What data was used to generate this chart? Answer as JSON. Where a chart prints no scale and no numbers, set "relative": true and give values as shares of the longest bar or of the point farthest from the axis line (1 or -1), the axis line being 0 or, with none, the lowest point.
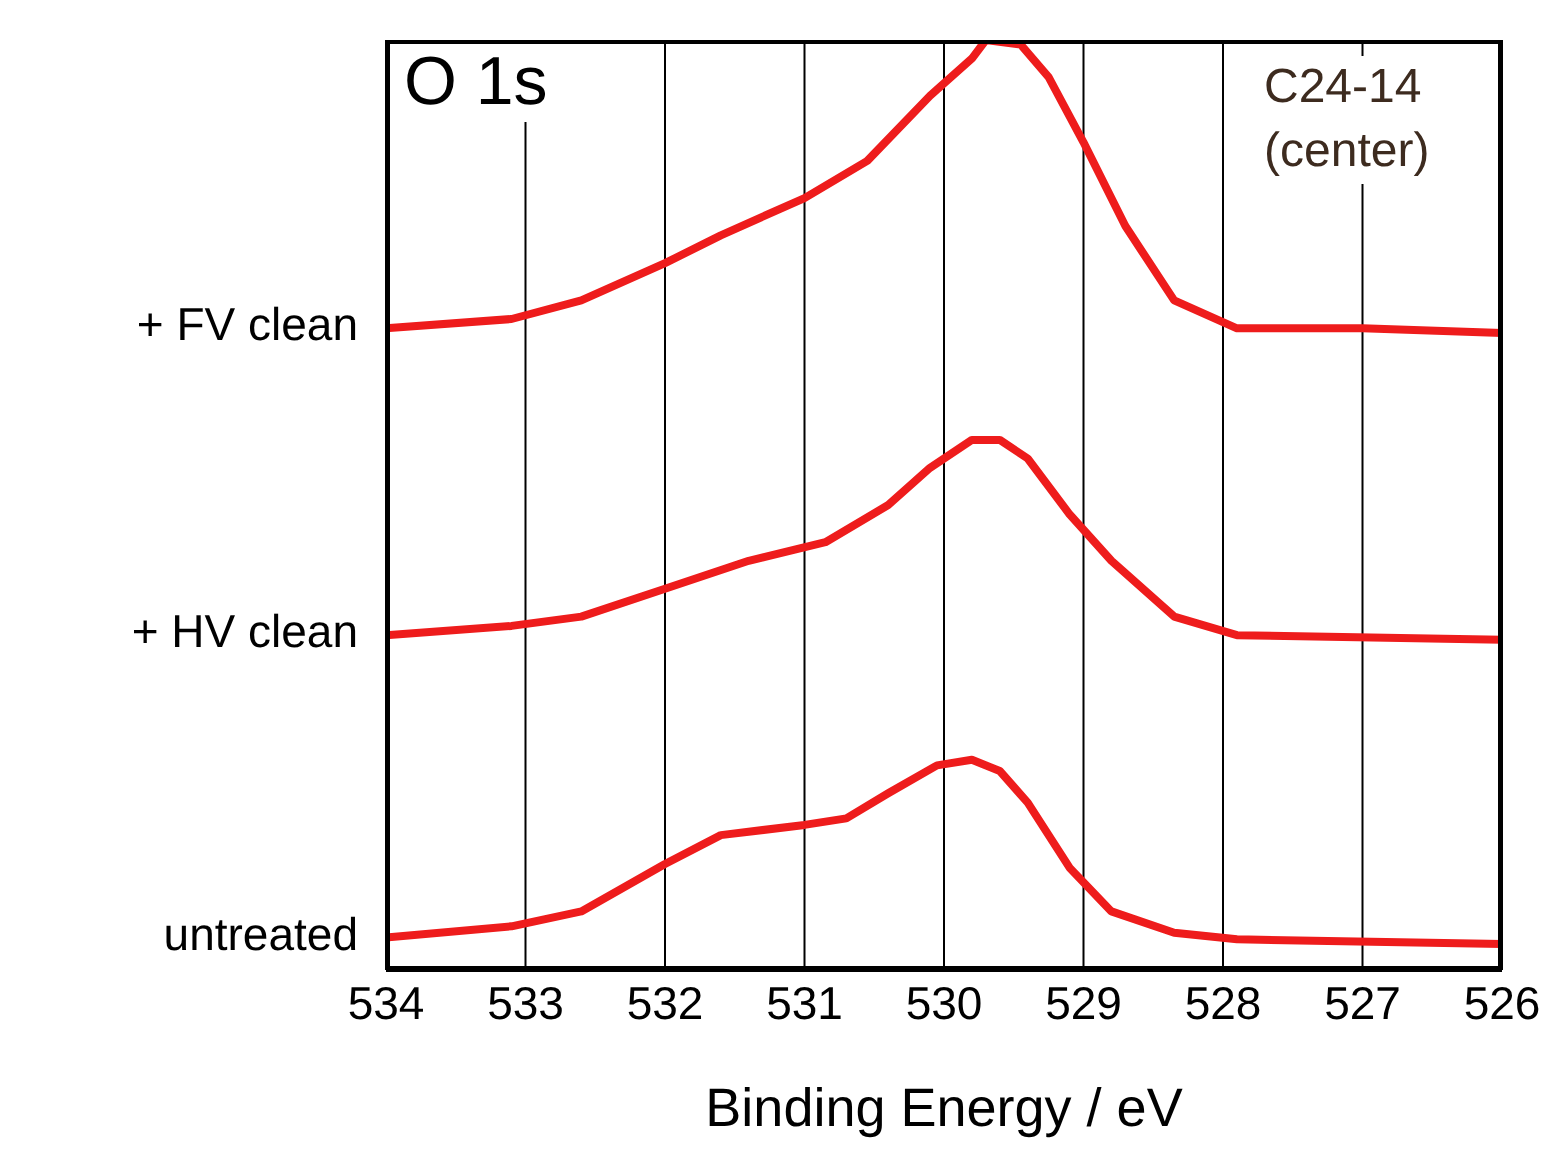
{
  "chart_data": {
    "type": "line",
    "relative": true,
    "xlabel": "Binding Energy / eV",
    "xlim": [
      534,
      526
    ],
    "xticks": [
      534,
      533,
      532,
      531,
      530,
      529,
      528,
      527,
      526
    ],
    "grid": "x",
    "legend": false,
    "marker": "none",
    "line_style": "solid",
    "tick_labels": "x",
    "annotations": [
      "O 1s",
      "C24-14 (center)"
    ],
    "series": [
      {
        "name": "+ FV clean",
        "color": "#ee1c1c",
        "x": [
          534.0,
          533.1,
          532.6,
          532.0,
          531.6,
          531.0,
          530.55,
          530.1,
          529.8,
          529.7,
          529.45,
          529.25,
          529.0,
          528.7,
          528.35,
          527.9,
          527.0,
          526.0
        ],
        "values": [
          0.69,
          0.7,
          0.72,
          0.76,
          0.79,
          0.83,
          0.87,
          0.94,
          0.98,
          1.0,
          0.995,
          0.96,
          0.89,
          0.8,
          0.72,
          0.69,
          0.69,
          0.685
        ]
      },
      {
        "name": "+ HV clean",
        "color": "#ee1c1c",
        "x": [
          534.0,
          533.1,
          532.6,
          532.0,
          531.4,
          530.85,
          530.4,
          530.1,
          529.8,
          529.6,
          529.4,
          529.1,
          528.8,
          528.35,
          527.9,
          526.0
        ],
        "values": [
          0.36,
          0.37,
          0.38,
          0.41,
          0.44,
          0.46,
          0.5,
          0.54,
          0.57,
          0.57,
          0.55,
          0.49,
          0.44,
          0.38,
          0.36,
          0.355
        ]
      },
      {
        "name": "untreated",
        "color": "#ee1c1c",
        "x": [
          534.0,
          533.1,
          532.6,
          532.0,
          531.6,
          531.0,
          530.7,
          530.4,
          530.05,
          529.8,
          529.6,
          529.4,
          529.1,
          528.8,
          528.35,
          527.9,
          526.0
        ],
        "values": [
          0.035,
          0.047,
          0.063,
          0.114,
          0.145,
          0.156,
          0.163,
          0.19,
          0.22,
          0.226,
          0.214,
          0.18,
          0.11,
          0.063,
          0.04,
          0.033,
          0.028
        ]
      }
    ]
  }
}
